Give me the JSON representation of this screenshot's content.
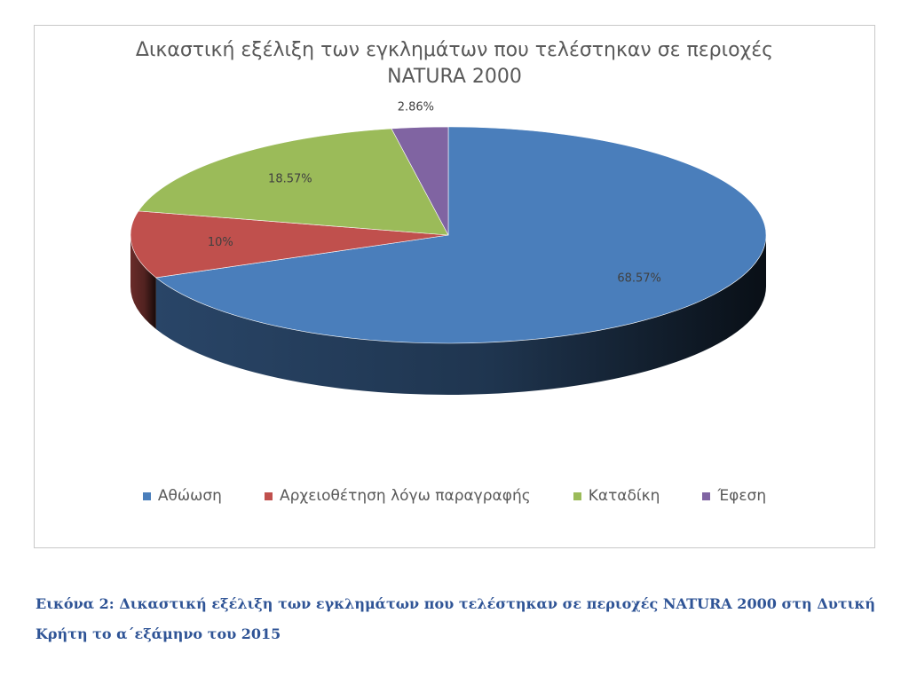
{
  "chart_data": {
    "type": "pie",
    "title_lines": [
      "Δικαστική εξέλιξη των εγκλημάτων που τελέστηκαν σε περιοχές",
      "NATURA 2000"
    ],
    "categories": [
      "Αθώωση",
      "Αρχειοθέτηση λόγω παραγραφής",
      "Καταδίκη",
      "Έφεση"
    ],
    "values": [
      68.57,
      10,
      18.57,
      2.86
    ],
    "data_labels": [
      "68.57%",
      "10%",
      "18.57%",
      "2.86%"
    ],
    "colors": [
      "#4a7ebb",
      "#c0504d",
      "#9bbb59",
      "#8064a2"
    ],
    "legend_position": "bottom",
    "style": "3d-pie"
  },
  "caption": "Εικόνα 2: Δικαστική εξέλιξη των εγκλημάτων που τελέστηκαν σε περιοχές NATURA 2000 στη Δυτική Κρήτη το α΄εξάμηνο του 2015"
}
